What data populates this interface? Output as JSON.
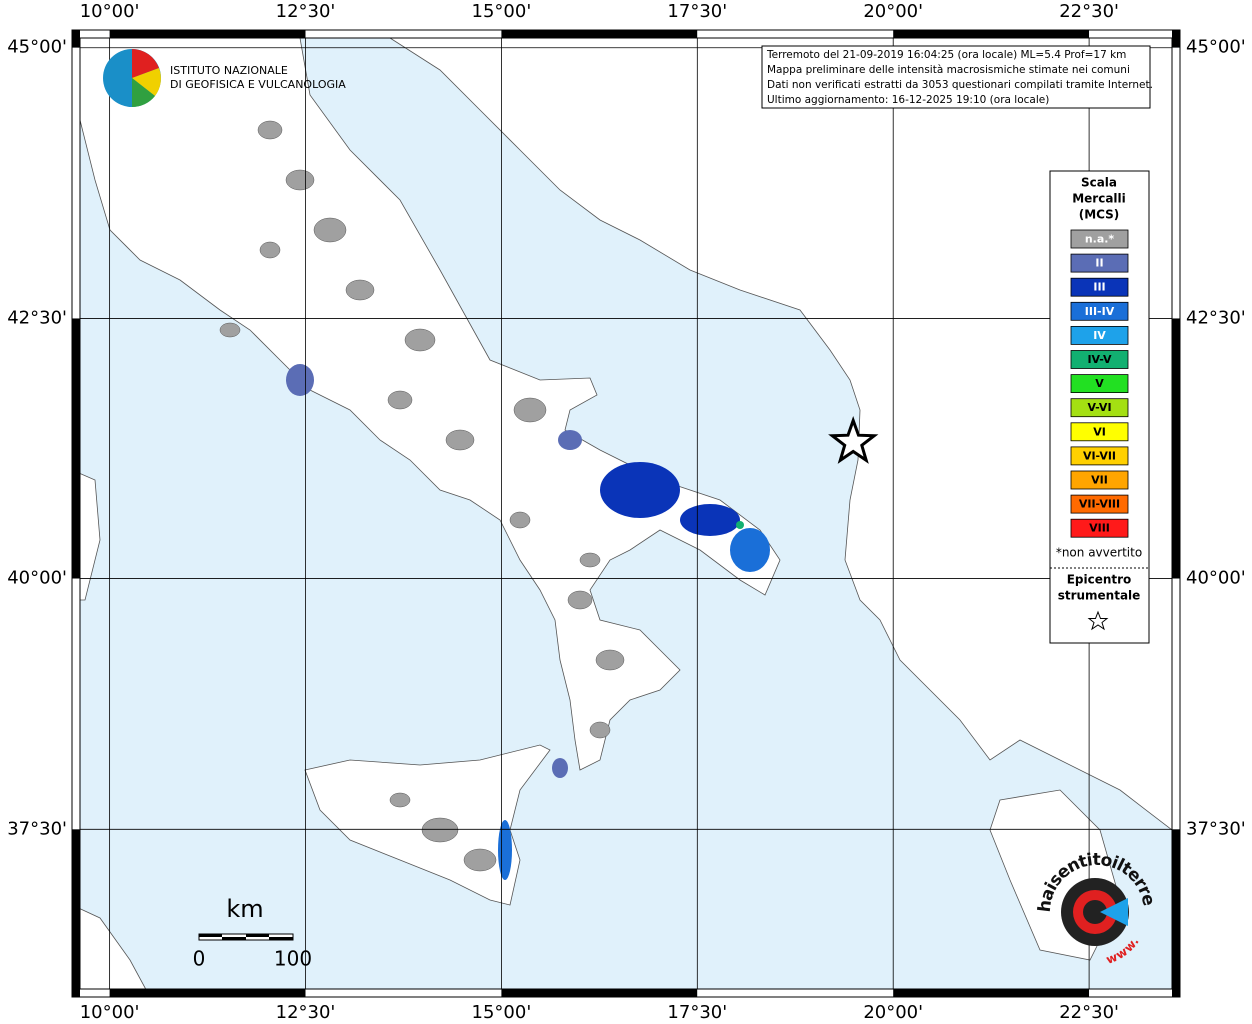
{
  "header": {
    "institute_lines": [
      "ISTITUTO NAZIONALE",
      "DI GEOFISICA E VULCANOLOGIA"
    ]
  },
  "info_box": {
    "lines": [
      "Terremoto del 21-09-2019 16:04:25 (ora locale) ML=5.4 Prof=17 km",
      "Mappa preliminare delle intensità macrosismiche stimate nei comuni",
      "Dati non verificati estratti da 3053 questionari compilati tramite Internet.",
      "Ultimo aggiornamento: 16-12-2025 19:10 (ora locale)"
    ]
  },
  "map": {
    "lonlim": [
      9.52,
      23.66
    ],
    "latlim": [
      35.78,
      45.16
    ],
    "lon_ticks": [
      {
        "value": 10,
        "label": "10°00'"
      },
      {
        "value": 12.5,
        "label": "12°30'"
      },
      {
        "value": 15,
        "label": "15°00'"
      },
      {
        "value": 17.5,
        "label": "17°30'"
      },
      {
        "value": 20,
        "label": "20°00'"
      },
      {
        "value": 22.5,
        "label": "22°30'"
      }
    ],
    "lat_ticks": [
      {
        "value": 45,
        "label": "45°00'"
      },
      {
        "value": 42.5,
        "label": "42°30'"
      },
      {
        "value": 40,
        "label": "40°00'"
      },
      {
        "value": 37.5,
        "label": "37°30'"
      }
    ],
    "epicenter": {
      "lon": 19.49,
      "lat": 41.32
    }
  },
  "legend": {
    "title_lines": [
      "Scala",
      "Mercalli",
      "(MCS)"
    ],
    "classes": [
      {
        "label": "n.a.*",
        "color": "#a0a0a0",
        "text_color": "#ffffff"
      },
      {
        "label": "II",
        "color": "#5b6db5",
        "text_color": "#ffffff"
      },
      {
        "label": "III",
        "color": "#0a34b8",
        "text_color": "#ffffff"
      },
      {
        "label": "III-IV",
        "color": "#1a6fd8",
        "text_color": "#ffffff"
      },
      {
        "label": "IV",
        "color": "#1ea2ea",
        "text_color": "#ffffff"
      },
      {
        "label": "IV-V",
        "color": "#12b071",
        "text_color": "#000000"
      },
      {
        "label": "V",
        "color": "#22e022",
        "text_color": "#000000"
      },
      {
        "label": "V-VI",
        "color": "#a4e012",
        "text_color": "#000000"
      },
      {
        "label": "VI",
        "color": "#ffff00",
        "text_color": "#000000"
      },
      {
        "label": "VI-VII",
        "color": "#ffd000",
        "text_color": "#000000"
      },
      {
        "label": "VII",
        "color": "#ffa500",
        "text_color": "#000000"
      },
      {
        "label": "VII-VIII",
        "color": "#ff6a00",
        "text_color": "#000000"
      },
      {
        "label": "VIII",
        "color": "#ff1a1a",
        "text_color": "#000000"
      }
    ],
    "note": "*non avvertito",
    "epicenter_lines": [
      "Epicentro",
      "strumentale"
    ]
  },
  "scale_bar": {
    "unit": "km",
    "labels": [
      0,
      100
    ]
  },
  "watermark": {
    "site": "haisentitoilterremoto.it",
    "www": "www."
  }
}
